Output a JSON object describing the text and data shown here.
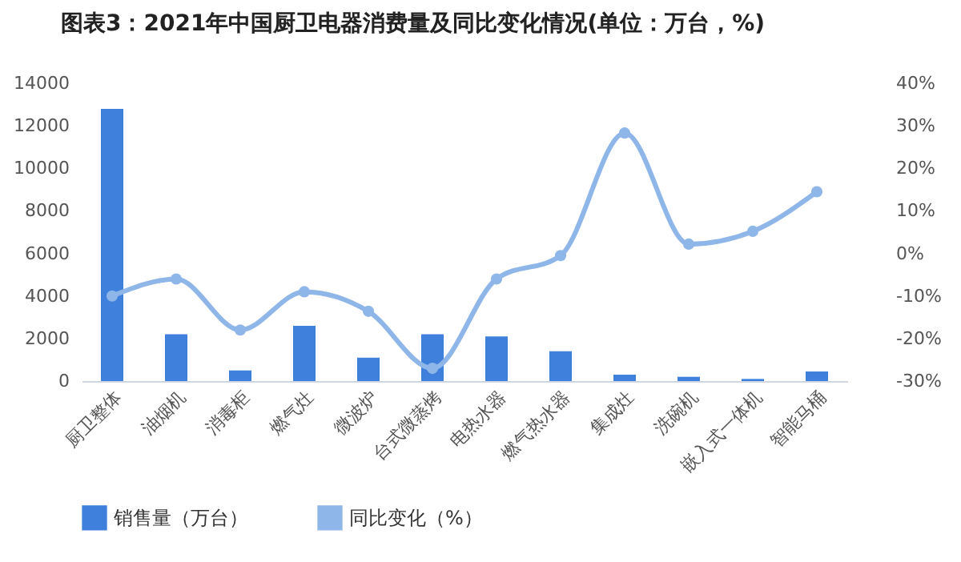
{
  "chart_data": {
    "type": "bar",
    "title": "图表3：2021年中国厨卫电器消费量及同比变化情况(单位：万台，%)",
    "categories": [
      "厨卫整体",
      "油烟机",
      "消毒柜",
      "燃气灶",
      "微波炉",
      "台式微蒸烤",
      "电热水器",
      "燃气热水器",
      "集成灶",
      "洗碗机",
      "嵌入式一体机",
      "智能马桶"
    ],
    "series": [
      {
        "name": "销售量（万台）",
        "color": "#3f80dc",
        "values": [
          12800,
          2200,
          500,
          2600,
          1100,
          2200,
          2100,
          1400,
          300,
          200,
          100,
          450
        ]
      },
      {
        "name": "同比变化（%）",
        "type": "line",
        "axis": "y2",
        "color": "#8fb6e8",
        "values": [
          -10,
          -6,
          -18,
          -9,
          -13.6,
          -27,
          -6,
          -0.5,
          28.3,
          2.2,
          5.2,
          14.5
        ]
      }
    ],
    "ylim": [
      0,
      14000
    ],
    "yticks": [
      0,
      2000,
      4000,
      6000,
      8000,
      10000,
      12000,
      14000
    ],
    "y2lim": [
      -30,
      40
    ],
    "y2ticks": [
      {
        "value": -30,
        "label": "-30%"
      },
      {
        "value": -20,
        "label": "-20%"
      },
      {
        "value": -10,
        "label": "-10%"
      },
      {
        "value": 0,
        "label": "0%"
      },
      {
        "value": 10,
        "label": "10%"
      },
      {
        "value": 20,
        "label": "20%"
      },
      {
        "value": 30,
        "label": "30%"
      },
      {
        "value": 40,
        "label": "40%"
      }
    ],
    "legend": "bottom",
    "marker": "circle",
    "line_style": "solid"
  }
}
